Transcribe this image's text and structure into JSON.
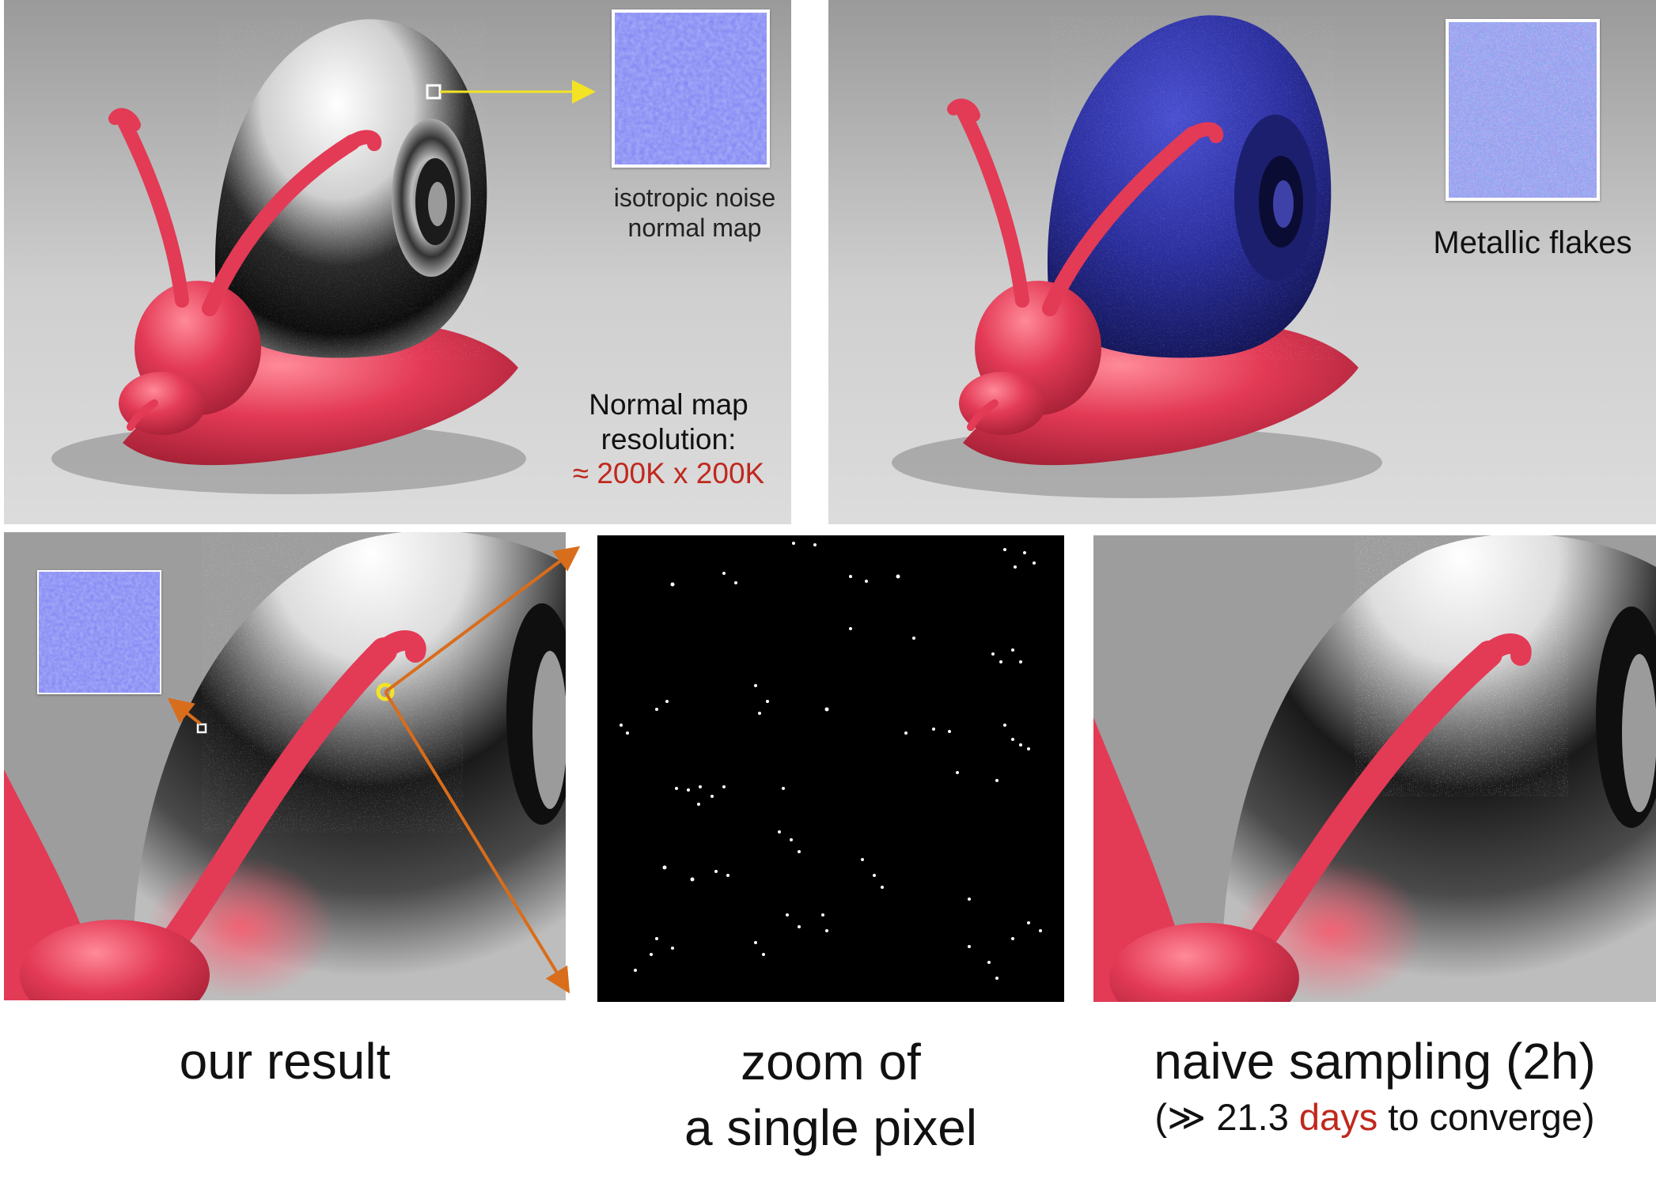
{
  "top_left": {
    "inset_label_line1": "isotropic noise",
    "inset_label_line2": "normal map",
    "res_line1": "Normal map",
    "res_line2": "resolution:",
    "res_value": "≈ 200K x 200K"
  },
  "top_right": {
    "inset_label": "Metallic flakes"
  },
  "captions": {
    "left": "our result",
    "middle_line1": "zoom of",
    "middle_line2": "a single pixel",
    "right_line1": "naive sampling (2h)",
    "right_line2_pre": "(≫ 21.3 ",
    "right_line2_em": "days",
    "right_line2_post": " to converge)"
  },
  "colors": {
    "snail_body": "#e33a56",
    "blue_map": "#7b7ff2",
    "arrow_yellow": "#f4e325",
    "arrow_orange": "#d86d1c",
    "emphasis_red": "#c0281d"
  }
}
